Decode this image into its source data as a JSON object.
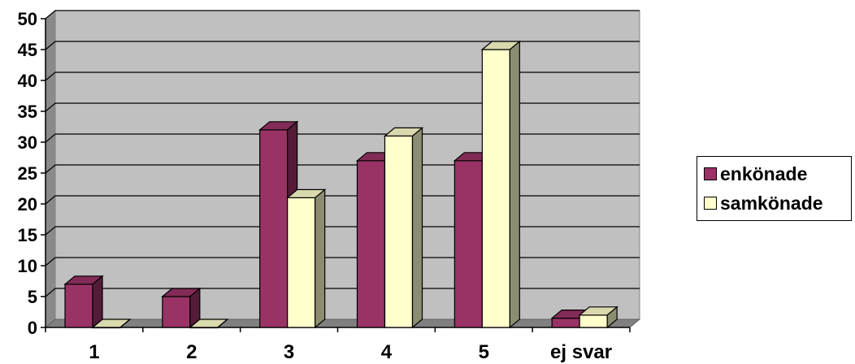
{
  "chart_data": {
    "type": "bar",
    "categories": [
      "1",
      "2",
      "3",
      "4",
      "5",
      "ej svar"
    ],
    "series": [
      {
        "name": "enkönade",
        "values": [
          7,
          5,
          32,
          27,
          27,
          1.5
        ],
        "color": "#993366"
      },
      {
        "name": "samkönade",
        "values": [
          0,
          0,
          21,
          31,
          45,
          2
        ],
        "color": "#FFFFCC"
      }
    ],
    "ylim": [
      0,
      50
    ],
    "yticks": [
      0,
      5,
      10,
      15,
      20,
      25,
      30,
      35,
      40,
      45,
      50
    ],
    "grid": true,
    "legend_position": "right",
    "plot_background": "#C0C0C0",
    "style": "3d-clustered"
  }
}
